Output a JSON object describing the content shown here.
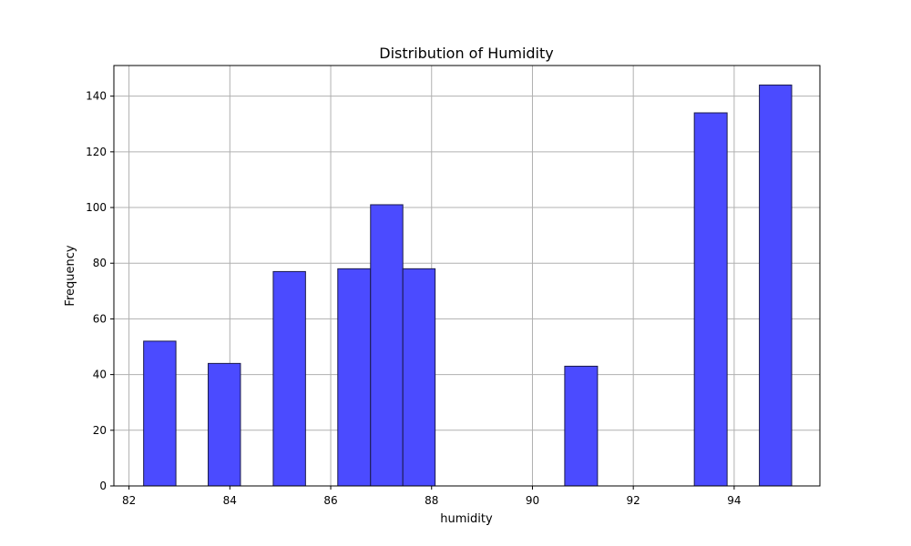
{
  "chart_data": {
    "type": "bar",
    "title": "Distribution of Humidity",
    "xlabel": "humidity",
    "ylabel": "Frequency",
    "xlim": [
      81.7,
      95.7
    ],
    "ylim": [
      0,
      151
    ],
    "xticks": [
      82,
      84,
      86,
      88,
      90,
      92,
      94
    ],
    "yticks": [
      0,
      20,
      40,
      60,
      80,
      100,
      120,
      140
    ],
    "grid": true,
    "bar_color": "#4b4bff",
    "edge_color": "#1a1a4a",
    "bins": [
      {
        "x0": 82.29,
        "x1": 82.93,
        "count": 52
      },
      {
        "x0": 83.57,
        "x1": 84.21,
        "count": 44
      },
      {
        "x0": 84.86,
        "x1": 85.5,
        "count": 77
      },
      {
        "x0": 86.14,
        "x1": 86.79,
        "count": 78
      },
      {
        "x0": 86.79,
        "x1": 87.43,
        "count": 101
      },
      {
        "x0": 87.43,
        "x1": 88.07,
        "count": 78
      },
      {
        "x0": 90.64,
        "x1": 91.29,
        "count": 43
      },
      {
        "x0": 93.21,
        "x1": 93.86,
        "count": 134
      },
      {
        "x0": 94.5,
        "x1": 95.14,
        "count": 144
      }
    ]
  }
}
